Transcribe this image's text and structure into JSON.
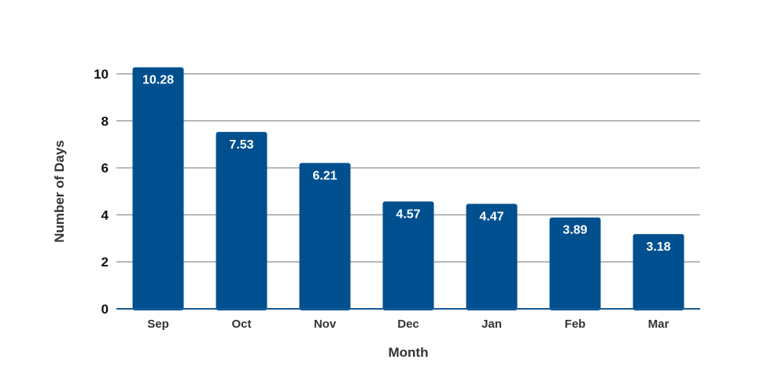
{
  "chart_data": {
    "type": "bar",
    "categories": [
      "Sep",
      "Oct",
      "Nov",
      "Dec",
      "Jan",
      "Feb",
      "Mar"
    ],
    "values": [
      10.28,
      7.53,
      6.21,
      4.57,
      4.47,
      3.89,
      3.18
    ],
    "data_labels": [
      "10.28",
      "7.53",
      "6.21",
      "4.57",
      "4.47",
      "3.89",
      "3.18"
    ],
    "title": "",
    "xlabel": "Month",
    "ylabel": "Number of Days",
    "ylim": [
      0,
      10
    ],
    "yticks": [
      0,
      2,
      4,
      6,
      8,
      10
    ],
    "grid": true,
    "legend": "none",
    "colors": {
      "bar": "#00508f",
      "grid": "#a0a0a0",
      "baseline": "#1a5a96"
    }
  }
}
